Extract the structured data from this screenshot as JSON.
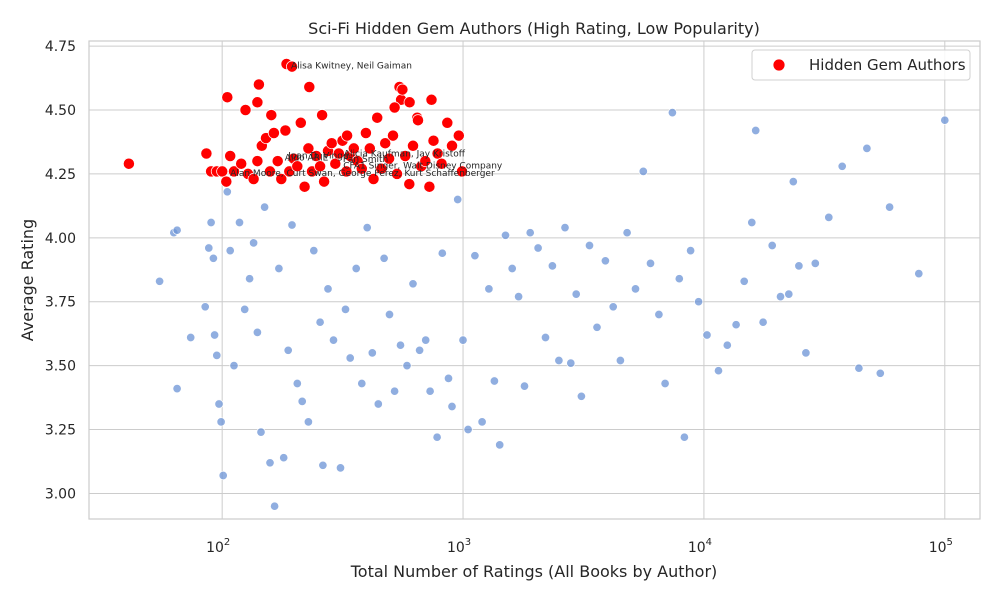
{
  "chart_data": {
    "type": "scatter",
    "title": "Sci-Fi Hidden Gem Authors (High Rating, Low Popularity)",
    "xlabel": "Total Number of Ratings (All Books by Author)",
    "ylabel": "Average Rating",
    "x_scale": "log",
    "xlim": [
      28,
      140000
    ],
    "ylim": [
      2.9,
      4.77
    ],
    "x_ticks": [
      {
        "value": 100,
        "base": "10",
        "exp": "2"
      },
      {
        "value": 1000,
        "base": "10",
        "exp": "3"
      },
      {
        "value": 10000,
        "base": "10",
        "exp": "4"
      },
      {
        "value": 100000,
        "base": "10",
        "exp": "5"
      }
    ],
    "y_ticks": [
      3.0,
      3.25,
      3.5,
      3.75,
      4.0,
      4.25,
      4.5,
      4.75
    ],
    "y_tick_labels": [
      "3.00",
      "3.25",
      "3.50",
      "3.75",
      "4.00",
      "4.25",
      "4.50",
      "4.75"
    ],
    "grid": true,
    "legend": {
      "position": "top-right",
      "entries": [
        "Hidden Gem Authors"
      ]
    },
    "colors": {
      "others": "#6b93d6",
      "hidden": "#ff0000",
      "grid": "#cccccc"
    },
    "series": [
      {
        "name": "",
        "role": "others",
        "points": [
          [
            55,
            3.83
          ],
          [
            63,
            4.02
          ],
          [
            65,
            4.03
          ],
          [
            65,
            3.41
          ],
          [
            74,
            3.61
          ],
          [
            85,
            3.73
          ],
          [
            88,
            3.96
          ],
          [
            90,
            4.06
          ],
          [
            92,
            3.92
          ],
          [
            93,
            3.62
          ],
          [
            95,
            3.54
          ],
          [
            97,
            3.35
          ],
          [
            99,
            3.28
          ],
          [
            101,
            3.07
          ],
          [
            105,
            4.18
          ],
          [
            108,
            3.95
          ],
          [
            112,
            3.5
          ],
          [
            118,
            4.06
          ],
          [
            124,
            3.72
          ],
          [
            130,
            3.84
          ],
          [
            135,
            3.98
          ],
          [
            140,
            3.63
          ],
          [
            145,
            3.24
          ],
          [
            150,
            4.12
          ],
          [
            158,
            3.12
          ],
          [
            165,
            2.95
          ],
          [
            172,
            3.88
          ],
          [
            180,
            3.14
          ],
          [
            188,
            3.56
          ],
          [
            195,
            4.05
          ],
          [
            205,
            3.43
          ],
          [
            215,
            3.36
          ],
          [
            228,
            3.28
          ],
          [
            240,
            3.95
          ],
          [
            255,
            3.67
          ],
          [
            262,
            3.11
          ],
          [
            275,
            3.8
          ],
          [
            290,
            3.6
          ],
          [
            310,
            3.1
          ],
          [
            325,
            3.72
          ],
          [
            340,
            3.53
          ],
          [
            360,
            3.88
          ],
          [
            380,
            3.43
          ],
          [
            400,
            4.04
          ],
          [
            420,
            3.55
          ],
          [
            445,
            3.35
          ],
          [
            470,
            3.92
          ],
          [
            495,
            3.7
          ],
          [
            520,
            3.4
          ],
          [
            550,
            3.58
          ],
          [
            585,
            3.5
          ],
          [
            620,
            3.82
          ],
          [
            660,
            3.56
          ],
          [
            700,
            3.6
          ],
          [
            730,
            3.4
          ],
          [
            780,
            3.22
          ],
          [
            820,
            3.94
          ],
          [
            870,
            3.45
          ],
          [
            900,
            3.34
          ],
          [
            950,
            4.15
          ],
          [
            1000,
            3.6
          ],
          [
            1050,
            3.25
          ],
          [
            1120,
            3.93
          ],
          [
            1200,
            3.28
          ],
          [
            1280,
            3.8
          ],
          [
            1350,
            3.44
          ],
          [
            1420,
            3.19
          ],
          [
            1500,
            4.01
          ],
          [
            1600,
            3.88
          ],
          [
            1700,
            3.77
          ],
          [
            1800,
            3.42
          ],
          [
            1900,
            4.02
          ],
          [
            2050,
            3.96
          ],
          [
            2200,
            3.61
          ],
          [
            2350,
            3.89
          ],
          [
            2500,
            3.52
          ],
          [
            2650,
            4.04
          ],
          [
            2800,
            3.51
          ],
          [
            2950,
            3.78
          ],
          [
            3100,
            3.38
          ],
          [
            3350,
            3.97
          ],
          [
            3600,
            3.65
          ],
          [
            3900,
            3.91
          ],
          [
            4200,
            3.73
          ],
          [
            4500,
            3.52
          ],
          [
            4800,
            4.02
          ],
          [
            5200,
            3.8
          ],
          [
            5600,
            4.26
          ],
          [
            6000,
            3.9
          ],
          [
            6500,
            3.7
          ],
          [
            6900,
            3.43
          ],
          [
            7400,
            4.49
          ],
          [
            7900,
            3.84
          ],
          [
            8300,
            3.22
          ],
          [
            8800,
            3.95
          ],
          [
            9500,
            3.75
          ],
          [
            10300,
            3.62
          ],
          [
            11500,
            3.48
          ],
          [
            12500,
            3.58
          ],
          [
            13600,
            3.66
          ],
          [
            14700,
            3.83
          ],
          [
            15800,
            4.06
          ],
          [
            16400,
            4.42
          ],
          [
            17600,
            3.67
          ],
          [
            19200,
            3.97
          ],
          [
            20800,
            3.77
          ],
          [
            22500,
            3.78
          ],
          [
            23500,
            4.22
          ],
          [
            24800,
            3.89
          ],
          [
            26500,
            3.55
          ],
          [
            29000,
            3.9
          ],
          [
            33000,
            4.08
          ],
          [
            37500,
            4.28
          ],
          [
            44000,
            3.49
          ],
          [
            47500,
            4.35
          ],
          [
            54000,
            3.47
          ],
          [
            59000,
            4.12
          ],
          [
            78000,
            3.86
          ],
          [
            100000,
            4.46
          ]
        ]
      },
      {
        "name": "Hidden Gem Authors",
        "role": "hidden",
        "points": [
          [
            41,
            4.29
          ],
          [
            86,
            4.33
          ],
          [
            90,
            4.26
          ],
          [
            95,
            4.26
          ],
          [
            100,
            4.26
          ],
          [
            104,
            4.22
          ],
          [
            108,
            4.32
          ],
          [
            112,
            4.26
          ],
          [
            120,
            4.29
          ],
          [
            128,
            4.25
          ],
          [
            135,
            4.23
          ],
          [
            140,
            4.3
          ],
          [
            146,
            4.36
          ],
          [
            152,
            4.39
          ],
          [
            158,
            4.26
          ],
          [
            164,
            4.41
          ],
          [
            170,
            4.3
          ],
          [
            176,
            4.23
          ],
          [
            183,
            4.42
          ],
          [
            190,
            4.26
          ],
          [
            198,
            4.31
          ],
          [
            205,
            4.28
          ],
          [
            212,
            4.45
          ],
          [
            220,
            4.2
          ],
          [
            228,
            4.35
          ],
          [
            236,
            4.26
          ],
          [
            246,
            4.32
          ],
          [
            255,
            4.28
          ],
          [
            265,
            4.22
          ],
          [
            275,
            4.34
          ],
          [
            285,
            4.37
          ],
          [
            295,
            4.29
          ],
          [
            305,
            4.33
          ],
          [
            316,
            4.38
          ],
          [
            328,
            4.26
          ],
          [
            340,
            4.32
          ],
          [
            352,
            4.35
          ],
          [
            365,
            4.3
          ],
          [
            380,
            4.27
          ],
          [
            395,
            4.41
          ],
          [
            410,
            4.35
          ],
          [
            425,
            4.23
          ],
          [
            440,
            4.47
          ],
          [
            458,
            4.27
          ],
          [
            475,
            4.37
          ],
          [
            493,
            4.31
          ],
          [
            512,
            4.4
          ],
          [
            532,
            4.25
          ],
          [
            553,
            4.54
          ],
          [
            575,
            4.32
          ],
          [
            598,
            4.21
          ],
          [
            620,
            4.36
          ],
          [
            645,
            4.47
          ],
          [
            670,
            4.28
          ],
          [
            697,
            4.3
          ],
          [
            725,
            4.2
          ],
          [
            754,
            4.38
          ],
          [
            784,
            4.33
          ],
          [
            815,
            4.29
          ],
          [
            860,
            4.45
          ],
          [
            900,
            4.36
          ],
          [
            960,
            4.4
          ],
          [
            105,
            4.55
          ],
          [
            125,
            4.5
          ],
          [
            140,
            4.53
          ],
          [
            142,
            4.6
          ],
          [
            160,
            4.48
          ],
          [
            185,
            4.68
          ],
          [
            195,
            4.67
          ],
          [
            230,
            4.59
          ],
          [
            260,
            4.48
          ],
          [
            330,
            4.4
          ],
          [
            520,
            4.51
          ],
          [
            545,
            4.59
          ],
          [
            560,
            4.58
          ],
          [
            600,
            4.53
          ],
          [
            650,
            4.46
          ],
          [
            740,
            4.54
          ],
          [
            990,
            4.26
          ]
        ]
      }
    ],
    "annotations": [
      {
        "text": "Alisa Kwitney, Neil Gaiman",
        "x": 193,
        "y": 4.674
      },
      {
        "text": "Joan D. Vinge",
        "x": 188,
        "y": 4.322
      },
      {
        "text": "Alicia Kaufman, Jay Kristoff",
        "x": 320,
        "y": 4.329
      },
      {
        "text": "Aldo ARIE",
        "x": 182,
        "y": 4.315
      },
      {
        "text": "Pan Smith",
        "x": 317,
        "y": 4.308
      },
      {
        "text": "CFA1 Singer, Walt Disney Company",
        "x": 318,
        "y": 4.282
      },
      {
        "text": "Alan Moore, Curt Swan, George Perez, Kurt Schaffenberger",
        "x": 108,
        "y": 4.253
      }
    ]
  }
}
